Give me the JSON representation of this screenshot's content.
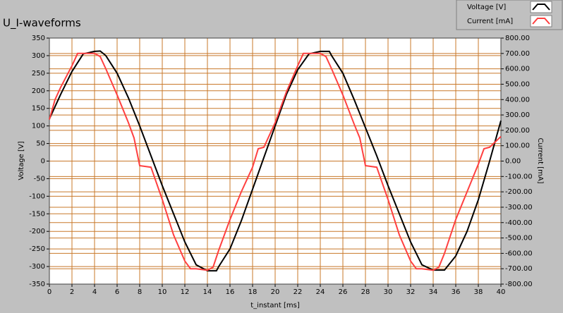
{
  "chart_data": {
    "type": "line",
    "title": "U_I-waveforms",
    "x_label": "t_instant [ms]",
    "y_label": "Voltage [V]",
    "y2_label": "Current [mA]",
    "xlim": [
      0,
      40
    ],
    "xticks": [
      0,
      2,
      4,
      6,
      8,
      10,
      12,
      14,
      16,
      18,
      20,
      22,
      24,
      26,
      28,
      30,
      32,
      34,
      36,
      38,
      40
    ],
    "ylim": [
      -350,
      350
    ],
    "yticks": [
      -350,
      -300,
      -250,
      -200,
      -150,
      -100,
      -50,
      0,
      50,
      100,
      150,
      200,
      250,
      300,
      350
    ],
    "y2lim": [
      -800,
      800
    ],
    "y2ticks": [
      {
        "value": -800,
        "label": "-800.00"
      },
      {
        "value": -700,
        "label": "-700.00"
      },
      {
        "value": -600,
        "label": "-600.00"
      },
      {
        "value": -500,
        "label": "-500.00"
      },
      {
        "value": -400,
        "label": "-400.00"
      },
      {
        "value": -300,
        "label": "-300.00"
      },
      {
        "value": -200,
        "label": "-200.00"
      },
      {
        "value": -100,
        "label": "-100.00"
      },
      {
        "value": 0,
        "label": "0.00"
      },
      {
        "value": 100,
        "label": "100.00"
      },
      {
        "value": 200,
        "label": "200.00"
      },
      {
        "value": 300,
        "label": "300.00"
      },
      {
        "value": 400,
        "label": "400.00"
      },
      {
        "value": 500,
        "label": "500.00"
      },
      {
        "value": 600,
        "label": "600.00"
      },
      {
        "value": 700,
        "label": "700.00"
      },
      {
        "value": 800,
        "label": "800.00"
      }
    ],
    "grid": true,
    "grid_color": "#c8782a",
    "series": [
      {
        "name": "Voltage [V]",
        "color": "#000000",
        "x": [
          0,
          1,
          2,
          3,
          4,
          4.5,
          5,
          6,
          7,
          8,
          9,
          10,
          11,
          12,
          13,
          14,
          14.8,
          15,
          16,
          17,
          18,
          19,
          20,
          21,
          22,
          23,
          24,
          24.8,
          25,
          26,
          27,
          28,
          29,
          30,
          31,
          32,
          33,
          34,
          35,
          36,
          37,
          38,
          39,
          40
        ],
        "values": [
          120,
          190,
          255,
          305,
          312,
          313,
          300,
          250,
          180,
          100,
          15,
          -70,
          -150,
          -230,
          -295,
          -312,
          -312,
          -300,
          -250,
          -170,
          -80,
          10,
          100,
          190,
          260,
          305,
          312,
          312,
          300,
          250,
          175,
          95,
          15,
          -70,
          -150,
          -230,
          -295,
          -310,
          -310,
          -270,
          -200,
          -110,
          0,
          115
        ]
      },
      {
        "name": "Current [mA]",
        "color": "#ff4040",
        "axis": "y2",
        "x": [
          0,
          0.5,
          1,
          2,
          2.5,
          3,
          4,
          4.5,
          5,
          6,
          7,
          7.5,
          8,
          9,
          10,
          11,
          12,
          12.5,
          13,
          14,
          14.5,
          15,
          16,
          17,
          18,
          18.5,
          19,
          20,
          21,
          22,
          22.5,
          23,
          24,
          24.5,
          25,
          26,
          27,
          27.5,
          28,
          29,
          30,
          31,
          32,
          32.5,
          33,
          34,
          34.5,
          35,
          36,
          37,
          38,
          38.5,
          39,
          40
        ],
        "values": [
          270,
          400,
          480,
          620,
          700,
          700,
          700,
          680,
          600,
          430,
          250,
          150,
          -30,
          -40,
          -250,
          -480,
          -650,
          -700,
          -700,
          -710,
          -690,
          -580,
          -380,
          -200,
          -40,
          80,
          90,
          250,
          450,
          620,
          700,
          700,
          700,
          680,
          600,
          430,
          240,
          150,
          -30,
          -40,
          -250,
          -480,
          -650,
          -700,
          -700,
          -710,
          -690,
          -600,
          -380,
          -200,
          -20,
          80,
          90,
          160
        ]
      }
    ]
  }
}
